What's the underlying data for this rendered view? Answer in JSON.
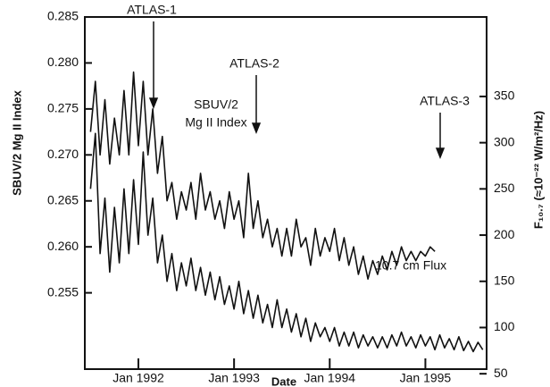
{
  "chart_data": {
    "type": "line",
    "xlabel": "Date",
    "ylabel": "SBUV/2 Mg II Index",
    "y2label": "F₁₀.₇ (≈10⁻²² W/m²/Hz)",
    "annotations": [
      "ATLAS-1",
      "ATLAS-2",
      "ATLAS-3",
      "SBUV/2",
      "Mg II Index",
      "10.7 cm Flux"
    ],
    "xlim": [
      1991.44,
      1995.64
    ],
    "xticks": [
      {
        "value": 1992,
        "label": "Jan 1992"
      },
      {
        "value": 1993,
        "label": "Jan 1993"
      },
      {
        "value": 1994,
        "label": "Jan 1994"
      },
      {
        "value": 1995,
        "label": "Jan 1995"
      }
    ],
    "ylim": [
      0.2467,
      0.285
    ],
    "yticks": [
      0.285,
      {
        "value": 0.28,
        "label": "0.280"
      },
      0.275,
      {
        "value": 0.27,
        "label": "0.270"
      },
      0.265,
      {
        "value": 0.26,
        "label": "0.260"
      },
      0.255
    ],
    "y2lim": [
      55,
      436
    ],
    "y2ticks": [
      50,
      100,
      150,
      200,
      250,
      300,
      350
    ],
    "x": [
      1991.5,
      1991.55,
      1991.6,
      1991.65,
      1991.7,
      1991.75,
      1991.8,
      1991.85,
      1991.9,
      1991.95,
      1992,
      1992.05,
      1992.1,
      1992.15,
      1992.2,
      1992.25,
      1992.3,
      1992.35,
      1992.4,
      1992.45,
      1992.5,
      1992.55,
      1992.6,
      1992.65,
      1992.7,
      1992.75,
      1992.8,
      1992.85,
      1992.9,
      1992.95,
      1993,
      1993.05,
      1993.1,
      1993.15,
      1993.2,
      1993.25,
      1993.3,
      1993.35,
      1993.4,
      1993.45,
      1993.5,
      1993.55,
      1993.6,
      1993.65,
      1993.7,
      1993.75,
      1993.8,
      1993.85,
      1993.9,
      1993.95,
      1994,
      1994.05,
      1994.1,
      1994.15,
      1994.2,
      1994.25,
      1994.3,
      1994.35,
      1994.4,
      1994.45,
      1994.5,
      1994.55,
      1994.6,
      1994.65,
      1994.7,
      1994.75,
      1994.8,
      1994.85,
      1994.9,
      1994.95,
      1995,
      1995.05,
      1995.1,
      1995.15,
      1995.2,
      1995.25,
      1995.3,
      1995.35,
      1995.4,
      1995.45,
      1995.5,
      1995.55,
      1995.6
    ],
    "series": [
      {
        "name": "SBUV/2 Mg II Index",
        "color": "#111111",
        "axis": "y",
        "values": [
          0.2725,
          0.278,
          0.27,
          0.276,
          0.269,
          0.274,
          0.27,
          0.277,
          0.27,
          0.279,
          0.271,
          0.278,
          0.27,
          0.275,
          0.268,
          0.272,
          0.265,
          0.267,
          0.263,
          0.266,
          0.264,
          0.267,
          0.263,
          0.268,
          0.264,
          0.266,
          0.263,
          0.265,
          0.262,
          0.266,
          0.263,
          0.265,
          0.261,
          0.268,
          0.262,
          0.265,
          0.261,
          0.263,
          0.26,
          0.262,
          0.259,
          0.262,
          0.259,
          0.263,
          0.26,
          0.261,
          0.258,
          0.262,
          0.259,
          0.261,
          0.2595,
          0.262,
          0.2585,
          0.261,
          0.258,
          0.26,
          0.257,
          0.259,
          0.2565,
          0.2585,
          0.257,
          0.259,
          0.2575,
          0.2595,
          0.258,
          0.26,
          0.2585,
          0.2595,
          0.2585,
          0.2595,
          0.259,
          0.26,
          0.2595,
          null,
          null,
          null,
          null,
          null,
          null,
          null,
          null,
          null,
          null
        ]
      },
      {
        "name": "10.7 cm Flux",
        "color": "#111111",
        "axis": "y2",
        "values": [
          250,
          310,
          180,
          240,
          160,
          230,
          170,
          250,
          180,
          260,
          190,
          290,
          200,
          240,
          170,
          200,
          150,
          180,
          140,
          170,
          145,
          175,
          140,
          165,
          135,
          160,
          130,
          155,
          125,
          145,
          120,
          150,
          115,
          140,
          110,
          135,
          105,
          125,
          100,
          130,
          100,
          120,
          95,
          115,
          90,
          110,
          85,
          105,
          90,
          100,
          85,
          100,
          80,
          95,
          80,
          95,
          78,
          92,
          80,
          90,
          78,
          90,
          78,
          92,
          80,
          95,
          80,
          90,
          78,
          92,
          80,
          90,
          76,
          92,
          78,
          88,
          76,
          90,
          75,
          85,
          74,
          84,
          76
        ]
      }
    ]
  }
}
